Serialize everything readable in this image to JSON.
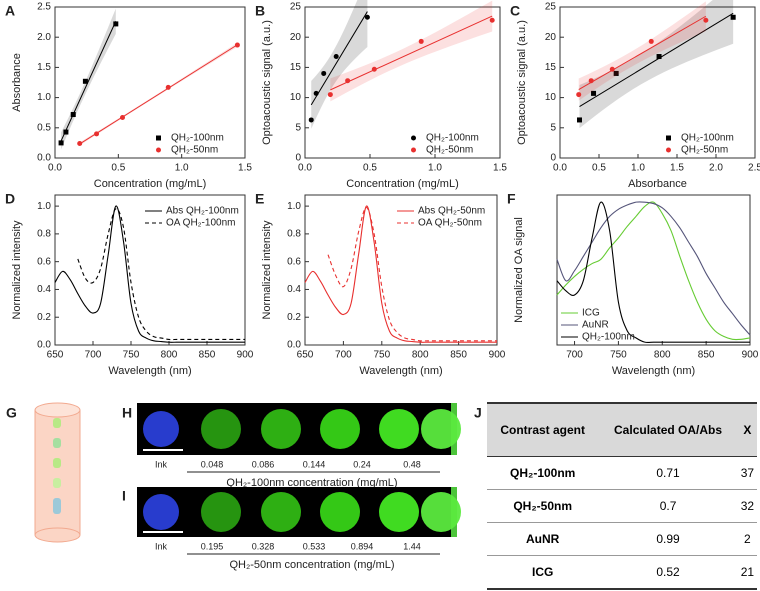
{
  "chart_data": [
    {
      "label": "A",
      "type": "scatter",
      "xlabel": "Concentration (mg/mL)",
      "ylabel": "Absorbance",
      "xlim": [
        0,
        1.5
      ],
      "xticks": [
        {
          "value": 0,
          "label": "0.0"
        },
        0.5,
        {
          "value": 1,
          "label": "1.0"
        },
        1.5
      ],
      "ylim": [
        0,
        2.5
      ],
      "yticks": [
        {
          "value": 0,
          "label": "0.0"
        },
        0.5,
        {
          "value": 1,
          "label": "1.0"
        },
        1.5,
        {
          "value": 2,
          "label": "2.0"
        },
        2.5
      ],
      "legend": "lower right",
      "fit": true,
      "series": [
        {
          "name": "QH₂-100nm",
          "color": "#000000",
          "marker": "square",
          "x": [
            0.048,
            0.086,
            0.144,
            0.24,
            0.48
          ],
          "values": [
            0.25,
            0.43,
            0.72,
            1.27,
            2.22
          ]
        },
        {
          "name": "QH₂-50nm",
          "color": "#e8302f",
          "marker": "circle",
          "x": [
            0.195,
            0.328,
            0.533,
            0.894,
            1.44
          ],
          "values": [
            0.24,
            0.4,
            0.67,
            1.17,
            1.87
          ]
        }
      ]
    },
    {
      "label": "B",
      "type": "scatter",
      "xlabel": "Concentration (mg/mL)",
      "ylabel": "Optoacoustic signal (a.u.)",
      "xlim": [
        0,
        1.5
      ],
      "xticks": [
        {
          "value": 0,
          "label": "0.0"
        },
        0.5,
        {
          "value": 1,
          "label": "1.0"
        },
        1.5
      ],
      "ylim": [
        0,
        25
      ],
      "yticks": [
        0,
        5,
        10,
        15,
        20,
        25
      ],
      "legend": "lower right",
      "fit": true,
      "series": [
        {
          "name": "QH₂-100nm",
          "color": "#000000",
          "marker": "circle",
          "x": [
            0.048,
            0.086,
            0.144,
            0.24,
            0.48
          ],
          "values": [
            6.3,
            10.7,
            14.0,
            16.8,
            23.3
          ]
        },
        {
          "name": "QH₂-50nm",
          "color": "#e8302f",
          "marker": "circle",
          "x": [
            0.195,
            0.328,
            0.533,
            0.894,
            1.44
          ],
          "values": [
            10.5,
            12.8,
            14.7,
            19.3,
            22.8
          ]
        }
      ]
    },
    {
      "label": "C",
      "type": "scatter",
      "xlabel": "Absorbance",
      "ylabel": "Optoacoustic signal (a.u.)",
      "xlim": [
        0,
        2.5
      ],
      "xticks": [
        {
          "value": 0,
          "label": "0.0"
        },
        0.5,
        {
          "value": 1,
          "label": "1.0"
        },
        1.5,
        {
          "value": 2,
          "label": "2.0"
        },
        2.5
      ],
      "ylim": [
        0,
        25
      ],
      "yticks": [
        0,
        5,
        10,
        15,
        20,
        25
      ],
      "legend": "lower right",
      "fit": true,
      "series": [
        {
          "name": "QH₂-100nm",
          "color": "#000000",
          "marker": "square",
          "x": [
            0.25,
            0.43,
            0.72,
            1.27,
            2.22
          ],
          "values": [
            6.3,
            10.7,
            14.0,
            16.8,
            23.3
          ]
        },
        {
          "name": "QH₂-50nm",
          "color": "#e8302f",
          "marker": "circle",
          "x": [
            0.24,
            0.4,
            0.67,
            1.17,
            1.87
          ],
          "values": [
            10.5,
            12.8,
            14.7,
            19.3,
            22.8
          ]
        }
      ]
    },
    {
      "label": "D",
      "type": "line",
      "xlabel": "Wavelength (nm)",
      "ylabel": "Normalized intensity",
      "xlim": [
        650,
        900
      ],
      "xticks": [
        650,
        700,
        750,
        800,
        850,
        900
      ],
      "ylim": [
        0,
        1.08
      ],
      "yticks": [
        {
          "value": 0,
          "label": "0.0"
        },
        0.2,
        0.4,
        0.6,
        0.8,
        {
          "value": 1,
          "label": "1.0"
        }
      ],
      "legend": "upper right",
      "x": [
        650,
        660,
        670,
        680,
        690,
        700,
        710,
        720,
        730,
        740,
        750,
        760,
        770,
        780,
        790,
        800,
        810,
        820,
        830,
        840,
        850,
        860,
        870,
        880,
        890,
        900
      ],
      "series": [
        {
          "name": "Abs QH₂-100nm",
          "color": "#000000",
          "dash": false,
          "values": [
            0.45,
            0.53,
            0.47,
            0.37,
            0.28,
            0.23,
            0.3,
            0.65,
            1.0,
            0.75,
            0.3,
            0.1,
            0.05,
            0.03,
            0.025,
            0.02,
            0.02,
            0.02,
            0.02,
            0.02,
            0.02,
            0.02,
            0.02,
            0.02,
            0.02,
            0.02
          ]
        },
        {
          "name": "OA QH₂-100nm",
          "color": "#000000",
          "dash": true,
          "values": [
            null,
            null,
            null,
            0.62,
            0.48,
            0.45,
            0.55,
            0.8,
            0.98,
            0.85,
            0.45,
            0.2,
            0.1,
            0.06,
            0.05,
            0.04,
            0.04,
            0.04,
            0.04,
            0.04,
            0.04,
            0.04,
            0.04,
            0.04,
            0.04,
            0.04
          ]
        }
      ]
    },
    {
      "label": "E",
      "type": "line",
      "xlabel": "Wavelength (nm)",
      "ylabel": "Normalized intensity",
      "xlim": [
        650,
        900
      ],
      "xticks": [
        650,
        700,
        750,
        800,
        850,
        900
      ],
      "ylim": [
        0,
        1.08
      ],
      "yticks": [
        {
          "value": 0,
          "label": "0.0"
        },
        0.2,
        0.4,
        0.6,
        0.8,
        {
          "value": 1,
          "label": "1.0"
        }
      ],
      "legend": "upper right",
      "x": [
        650,
        660,
        670,
        680,
        690,
        700,
        710,
        720,
        730,
        740,
        750,
        760,
        770,
        780,
        790,
        800,
        810,
        820,
        830,
        840,
        850,
        860,
        870,
        880,
        890,
        900
      ],
      "series": [
        {
          "name": "Abs QH₂-50nm",
          "color": "#e8302f",
          "dash": false,
          "values": [
            0.45,
            0.53,
            0.46,
            0.36,
            0.27,
            0.22,
            0.3,
            0.66,
            1.0,
            0.74,
            0.3,
            0.1,
            0.05,
            0.03,
            0.025,
            0.02,
            0.02,
            0.02,
            0.02,
            0.02,
            0.02,
            0.02,
            0.02,
            0.02,
            0.02,
            0.02
          ]
        },
        {
          "name": "OA QH₂-50nm",
          "color": "#e8302f",
          "dash": true,
          "values": [
            null,
            null,
            null,
            0.65,
            0.5,
            0.42,
            0.55,
            0.82,
            0.99,
            0.8,
            0.42,
            0.18,
            0.09,
            0.05,
            0.04,
            0.03,
            0.03,
            0.03,
            0.03,
            0.03,
            0.03,
            0.03,
            0.03,
            0.03,
            0.03,
            0.03
          ]
        }
      ]
    },
    {
      "label": "F",
      "type": "line",
      "xlabel": "Wavelength (nm)",
      "ylabel": "Normalized OA signal",
      "xlim": [
        680,
        900
      ],
      "xticks": [
        700,
        750,
        800,
        850,
        900
      ],
      "ylim": [
        0,
        1.05
      ],
      "legend": "lower left",
      "x": [
        680,
        690,
        700,
        710,
        720,
        730,
        740,
        750,
        760,
        770,
        780,
        790,
        800,
        810,
        820,
        830,
        840,
        850,
        860,
        870,
        880,
        890,
        900
      ],
      "series": [
        {
          "name": "ICG",
          "color": "#66cc33",
          "dash": false,
          "values": [
            0.35,
            0.42,
            0.48,
            0.53,
            0.57,
            0.6,
            0.68,
            0.75,
            0.83,
            0.9,
            0.97,
            1.0,
            0.92,
            0.8,
            0.62,
            0.45,
            0.3,
            0.18,
            0.1,
            0.06,
            0.04,
            0.04,
            0.05
          ]
        },
        {
          "name": "AuNR",
          "color": "#55557a",
          "dash": false,
          "values": [
            0.6,
            0.45,
            0.52,
            0.62,
            0.72,
            0.82,
            0.9,
            0.95,
            0.98,
            1.0,
            1.0,
            0.99,
            0.96,
            0.9,
            0.82,
            0.72,
            0.62,
            0.5,
            0.4,
            0.3,
            0.22,
            0.14,
            0.07
          ]
        },
        {
          "name": "QH₂-100nm",
          "color": "#000000",
          "dash": false,
          "values": [
            0.45,
            0.38,
            0.35,
            0.45,
            0.75,
            1.0,
            0.8,
            0.3,
            0.1,
            0.05,
            0.02,
            0.02,
            0.02,
            0.02,
            0.02,
            0.02,
            0.02,
            0.02,
            0.02,
            0.02,
            0.02,
            0.02,
            0.02
          ]
        }
      ]
    }
  ],
  "G": {
    "label": "G"
  },
  "H": {
    "label": "H",
    "samples": [
      "Ink",
      "0.048",
      "0.086",
      "0.144",
      "0.24",
      "0.48"
    ],
    "caption": "QH₂-100nm concentration (mg/mL)"
  },
  "I": {
    "label": "I",
    "samples": [
      "Ink",
      "0.195",
      "0.328",
      "0.533",
      "0.894",
      "1.44"
    ],
    "caption": "QH₂-50nm concentration (mg/mL)"
  },
  "table": {
    "label": "J",
    "header": [
      "Contrast agent",
      "Calculated OA/Abs",
      "X"
    ],
    "rows": [
      [
        "QH₂-100nm",
        0.71,
        37
      ],
      [
        "QH₂-50nm",
        0.7,
        32
      ],
      [
        "AuNR",
        0.99,
        2
      ],
      [
        "ICG",
        0.52,
        21
      ]
    ]
  }
}
